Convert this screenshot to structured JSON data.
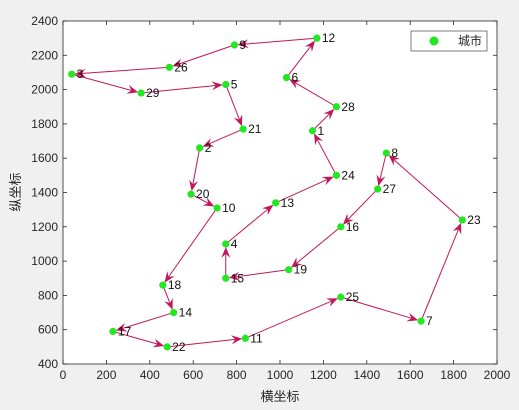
{
  "chart_data": {
    "type": "scatter",
    "xlabel": "横坐标",
    "ylabel": "纵坐标",
    "xlim": [
      0,
      2000
    ],
    "ylim": [
      400,
      2400
    ],
    "x_ticks": [
      0,
      200,
      400,
      600,
      800,
      1000,
      1200,
      1400,
      1600,
      1800,
      2000
    ],
    "y_ticks": [
      400,
      600,
      800,
      1000,
      1200,
      1400,
      1600,
      1800,
      2000,
      2200,
      2400
    ],
    "legend": {
      "label": "城市",
      "location": "top-right"
    },
    "grid": false,
    "point_color": "#22e822",
    "route_color": "#c2185b",
    "cities": [
      {
        "id": "1",
        "x": 1150,
        "y": 1760
      },
      {
        "id": "2",
        "x": 630,
        "y": 1660
      },
      {
        "id": "3",
        "x": 40,
        "y": 2090
      },
      {
        "id": "4",
        "x": 750,
        "y": 1100
      },
      {
        "id": "5",
        "x": 750,
        "y": 2030
      },
      {
        "id": "6",
        "x": 1030,
        "y": 2070
      },
      {
        "id": "7",
        "x": 1650,
        "y": 650
      },
      {
        "id": "8",
        "x": 1490,
        "y": 1630
      },
      {
        "id": "9",
        "x": 790,
        "y": 2260
      },
      {
        "id": "10",
        "x": 710,
        "y": 1310
      },
      {
        "id": "11",
        "x": 840,
        "y": 550
      },
      {
        "id": "12",
        "x": 1170,
        "y": 2300
      },
      {
        "id": "13",
        "x": 980,
        "y": 1340
      },
      {
        "id": "14",
        "x": 510,
        "y": 700
      },
      {
        "id": "15",
        "x": 750,
        "y": 900
      },
      {
        "id": "16",
        "x": 1280,
        "y": 1200
      },
      {
        "id": "17",
        "x": 230,
        "y": 590
      },
      {
        "id": "18",
        "x": 460,
        "y": 860
      },
      {
        "id": "19",
        "x": 1040,
        "y": 950
      },
      {
        "id": "20",
        "x": 590,
        "y": 1390
      },
      {
        "id": "21",
        "x": 830,
        "y": 1770
      },
      {
        "id": "22",
        "x": 480,
        "y": 500
      },
      {
        "id": "23",
        "x": 1840,
        "y": 1240
      },
      {
        "id": "24",
        "x": 1260,
        "y": 1500
      },
      {
        "id": "25",
        "x": 1280,
        "y": 790
      },
      {
        "id": "26",
        "x": 490,
        "y": 2130
      },
      {
        "id": "27",
        "x": 1450,
        "y": 1420
      },
      {
        "id": "28",
        "x": 1260,
        "y": 1900
      },
      {
        "id": "29",
        "x": 360,
        "y": 1980
      }
    ],
    "route": [
      "1",
      "28",
      "6",
      "12",
      "9",
      "26",
      "3",
      "29",
      "5",
      "21",
      "2",
      "20",
      "10",
      "18",
      "14",
      "17",
      "22",
      "11",
      "25",
      "7",
      "23",
      "8",
      "27",
      "16",
      "19",
      "15",
      "4",
      "13",
      "24",
      "1"
    ]
  }
}
